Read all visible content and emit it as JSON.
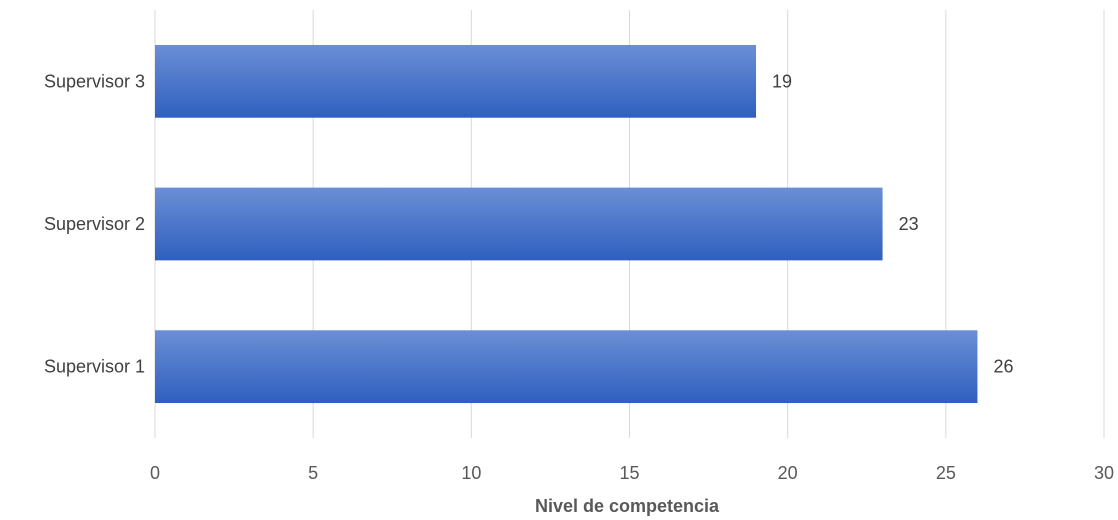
{
  "chart_data": {
    "type": "bar",
    "orientation": "horizontal",
    "categories": [
      "Supervisor 1",
      "Supervisor 2",
      "Supervisor 3"
    ],
    "values": [
      26,
      23,
      19
    ],
    "data_labels": [
      "26",
      "23",
      "19"
    ],
    "xlabel": "Nivel de competencia",
    "ylabel": "",
    "xlim": [
      0,
      30
    ],
    "xticks": [
      "0",
      "5",
      "10",
      "15",
      "20",
      "25",
      "30"
    ],
    "grid": "vertical",
    "legend": "none",
    "bar_color": "#4472c4"
  }
}
